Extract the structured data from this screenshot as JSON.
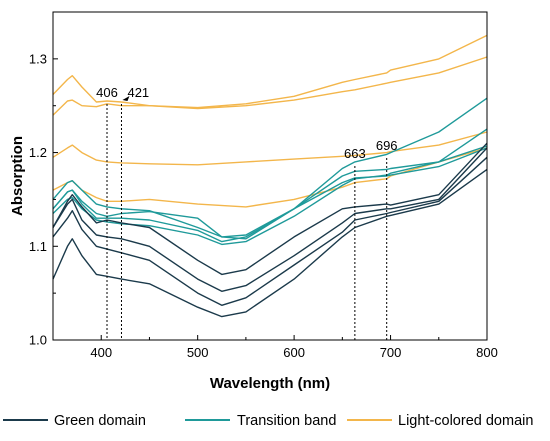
{
  "chart_data": {
    "type": "line",
    "title": "",
    "xlabel": "Wavelength (nm)",
    "ylabel": "Absorption",
    "xlim": [
      350,
      800
    ],
    "ylim": [
      1.0,
      1.35
    ],
    "xticks": [
      400,
      500,
      600,
      700,
      800
    ],
    "xtick_labels": [
      "400",
      "500",
      "600",
      "700",
      "800"
    ],
    "yticks": [
      1.0,
      1.1,
      1.2,
      1.3
    ],
    "ytick_labels": [
      "1.0",
      "1.1",
      "1.2",
      "1.3"
    ],
    "grid": false,
    "legend_position": "bottom",
    "legend": [
      {
        "label": "Green domain",
        "color": "#1b3a4b"
      },
      {
        "label": "Transition band",
        "color": "#1f9a9a"
      },
      {
        "label": "Light-colored domain",
        "color": "#f3b64b"
      }
    ],
    "annotations": [
      {
        "label": "406",
        "x": 406
      },
      {
        "label": "421",
        "x": 421
      },
      {
        "label": "663",
        "x": 663
      },
      {
        "label": "696",
        "x": 696
      }
    ],
    "series": [
      {
        "group": "Light-colored domain",
        "x": [
          350,
          365,
          370,
          380,
          395,
          406,
          421,
          450,
          500,
          550,
          600,
          650,
          663,
          696,
          700,
          750,
          800
        ],
        "y": [
          1.262,
          1.278,
          1.282,
          1.27,
          1.254,
          1.255,
          1.254,
          1.25,
          1.247,
          1.25,
          1.256,
          1.265,
          1.267,
          1.274,
          1.275,
          1.285,
          1.302
        ]
      },
      {
        "group": "Light-colored domain",
        "x": [
          350,
          365,
          370,
          380,
          395,
          406,
          421,
          450,
          500,
          550,
          600,
          650,
          663,
          696,
          700,
          750,
          800
        ],
        "y": [
          1.24,
          1.255,
          1.256,
          1.25,
          1.249,
          1.252,
          1.25,
          1.25,
          1.248,
          1.252,
          1.26,
          1.275,
          1.278,
          1.285,
          1.288,
          1.3,
          1.325
        ]
      },
      {
        "group": "Light-colored domain",
        "x": [
          350,
          365,
          370,
          380,
          395,
          406,
          421,
          450,
          500,
          550,
          600,
          650,
          663,
          696,
          700,
          750,
          800
        ],
        "y": [
          1.195,
          1.205,
          1.208,
          1.2,
          1.192,
          1.19,
          1.189,
          1.188,
          1.187,
          1.19,
          1.193,
          1.196,
          1.197,
          1.2,
          1.201,
          1.208,
          1.222
        ]
      },
      {
        "group": "Light-colored domain",
        "x": [
          350,
          365,
          370,
          380,
          395,
          406,
          421,
          450,
          500,
          550,
          600,
          650,
          663,
          696,
          700,
          750,
          800
        ],
        "y": [
          1.16,
          1.168,
          1.17,
          1.16,
          1.152,
          1.148,
          1.148,
          1.15,
          1.145,
          1.142,
          1.15,
          1.163,
          1.168,
          1.172,
          1.175,
          1.19,
          1.205
        ]
      },
      {
        "group": "Transition band",
        "x": [
          350,
          365,
          370,
          380,
          395,
          406,
          421,
          450,
          500,
          525,
          550,
          600,
          650,
          663,
          696,
          700,
          750,
          800
        ],
        "y": [
          1.15,
          1.168,
          1.17,
          1.16,
          1.145,
          1.142,
          1.14,
          1.138,
          1.12,
          1.11,
          1.112,
          1.14,
          1.183,
          1.19,
          1.198,
          1.2,
          1.222,
          1.258
        ]
      },
      {
        "group": "Transition band",
        "x": [
          350,
          365,
          370,
          380,
          395,
          406,
          421,
          450,
          500,
          525,
          550,
          600,
          650,
          663,
          696,
          700,
          750,
          800
        ],
        "y": [
          1.14,
          1.158,
          1.16,
          1.148,
          1.135,
          1.132,
          1.135,
          1.137,
          1.13,
          1.11,
          1.108,
          1.14,
          1.175,
          1.18,
          1.182,
          1.183,
          1.19,
          1.225
        ]
      },
      {
        "group": "Transition band",
        "x": [
          350,
          365,
          370,
          380,
          395,
          406,
          421,
          450,
          500,
          525,
          550,
          600,
          650,
          663,
          696,
          700,
          750,
          800
        ],
        "y": [
          1.14,
          1.158,
          1.16,
          1.145,
          1.13,
          1.13,
          1.13,
          1.128,
          1.117,
          1.105,
          1.11,
          1.14,
          1.168,
          1.173,
          1.175,
          1.176,
          1.185,
          1.205
        ]
      },
      {
        "group": "Transition band",
        "x": [
          350,
          365,
          370,
          380,
          395,
          406,
          421,
          450,
          500,
          525,
          550,
          600,
          650,
          663,
          696,
          700,
          750,
          800
        ],
        "y": [
          1.135,
          1.15,
          1.152,
          1.14,
          1.128,
          1.126,
          1.124,
          1.122,
          1.112,
          1.102,
          1.105,
          1.132,
          1.165,
          1.172,
          1.176,
          1.178,
          1.19,
          1.207
        ]
      },
      {
        "group": "Green domain",
        "x": [
          350,
          365,
          370,
          380,
          395,
          406,
          421,
          450,
          500,
          525,
          550,
          600,
          650,
          663,
          696,
          700,
          750,
          800
        ],
        "y": [
          1.12,
          1.148,
          1.155,
          1.142,
          1.125,
          1.128,
          1.125,
          1.12,
          1.085,
          1.07,
          1.075,
          1.11,
          1.14,
          1.142,
          1.145,
          1.144,
          1.155,
          1.21
        ]
      },
      {
        "group": "Green domain",
        "x": [
          350,
          365,
          370,
          380,
          395,
          406,
          421,
          450,
          500,
          525,
          550,
          600,
          650,
          663,
          696,
          700,
          750,
          800
        ],
        "y": [
          1.12,
          1.145,
          1.15,
          1.128,
          1.112,
          1.11,
          1.108,
          1.1,
          1.065,
          1.052,
          1.058,
          1.09,
          1.125,
          1.135,
          1.14,
          1.14,
          1.15,
          1.205
        ]
      },
      {
        "group": "Green domain",
        "x": [
          350,
          365,
          370,
          380,
          395,
          406,
          421,
          450,
          500,
          525,
          550,
          600,
          650,
          663,
          696,
          700,
          750,
          800
        ],
        "y": [
          1.11,
          1.13,
          1.138,
          1.118,
          1.1,
          1.097,
          1.093,
          1.085,
          1.05,
          1.037,
          1.045,
          1.08,
          1.115,
          1.128,
          1.135,
          1.136,
          1.148,
          1.195
        ]
      },
      {
        "group": "Green domain",
        "x": [
          350,
          365,
          370,
          380,
          395,
          406,
          421,
          450,
          500,
          525,
          550,
          600,
          650,
          663,
          696,
          700,
          750,
          800
        ],
        "y": [
          1.065,
          1.1,
          1.108,
          1.09,
          1.07,
          1.068,
          1.065,
          1.06,
          1.035,
          1.025,
          1.03,
          1.065,
          1.11,
          1.12,
          1.132,
          1.133,
          1.145,
          1.182
        ]
      }
    ]
  }
}
